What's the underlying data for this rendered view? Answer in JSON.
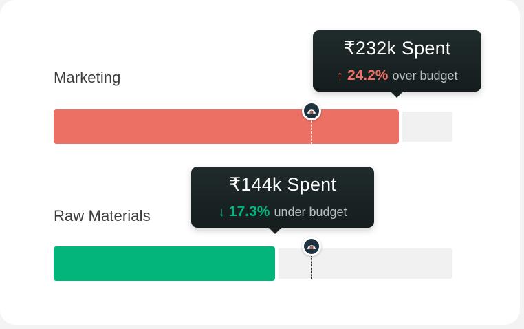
{
  "rows": [
    {
      "label": "Marketing",
      "spent_text": "₹232k Spent",
      "direction_arrow": "↑",
      "percent": "24.2%",
      "note": "over budget",
      "status": "over",
      "status_color": "#ed7064",
      "spent_fraction_of_track": 0.866,
      "budget_marker_fraction": 0.645,
      "marker_icon": "budget-gauge-icon"
    },
    {
      "label": "Raw Materials",
      "spent_text": "₹144k Spent",
      "direction_arrow": "↓",
      "percent": "17.3%",
      "note": "under budget",
      "status": "under",
      "status_color": "#03b47b",
      "spent_fraction_of_track": 0.555,
      "budget_marker_fraction": 0.645,
      "marker_icon": "budget-gauge-icon"
    }
  ]
}
